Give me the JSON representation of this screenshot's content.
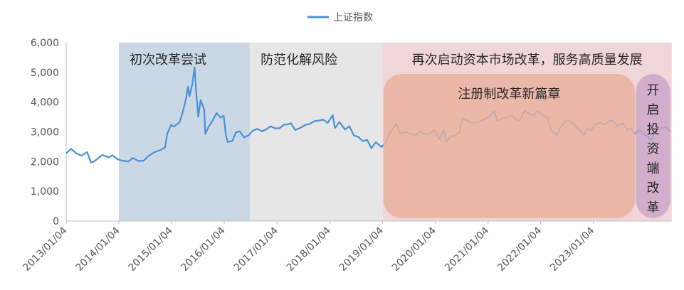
{
  "chart_data": {
    "type": "line",
    "title": "",
    "xlabel": "",
    "ylabel": "",
    "legend": {
      "position": "top-center",
      "entries": [
        "上证指数"
      ]
    },
    "grid": false,
    "ylim": [
      0,
      6000
    ],
    "y_ticks": [
      "0",
      "1,000",
      "2,000",
      "3,000",
      "4,000",
      "5,000",
      "6,000"
    ],
    "x_ticks": [
      "2013/01/04",
      "2014/01/04",
      "2015/01/04",
      "2016/01/04",
      "2017/01/04",
      "2018/01/04",
      "2019/01/04",
      "2020/01/04",
      "2021/01/04",
      "2022/01/04",
      "2023/01/04"
    ],
    "series": [
      {
        "name": "上证指数",
        "color": "#4a90d9",
        "points": [
          [
            "2013-01-04",
            2270
          ],
          [
            "2013-02-06",
            2430
          ],
          [
            "2013-03-15",
            2280
          ],
          [
            "2013-04-20",
            2200
          ],
          [
            "2013-05-29",
            2320
          ],
          [
            "2013-06-25",
            1960
          ],
          [
            "2013-07-20",
            2020
          ],
          [
            "2013-09-12",
            2230
          ],
          [
            "2013-10-25",
            2140
          ],
          [
            "2013-11-20",
            2210
          ],
          [
            "2013-12-25",
            2080
          ],
          [
            "2014-01-20",
            2040
          ],
          [
            "2014-03-10",
            2000
          ],
          [
            "2014-04-10",
            2120
          ],
          [
            "2014-05-20",
            2020
          ],
          [
            "2014-06-25",
            2030
          ],
          [
            "2014-07-25",
            2180
          ],
          [
            "2014-09-10",
            2320
          ],
          [
            "2014-10-15",
            2380
          ],
          [
            "2014-11-20",
            2480
          ],
          [
            "2014-12-05",
            2930
          ],
          [
            "2014-12-31",
            3230
          ],
          [
            "2015-01-20",
            3180
          ],
          [
            "2015-02-27",
            3310
          ],
          [
            "2015-03-20",
            3620
          ],
          [
            "2015-04-15",
            4130
          ],
          [
            "2015-04-28",
            4520
          ],
          [
            "2015-05-08",
            4200
          ],
          [
            "2015-05-28",
            4620
          ],
          [
            "2015-06-12",
            5170
          ],
          [
            "2015-06-26",
            4190
          ],
          [
            "2015-07-08",
            3510
          ],
          [
            "2015-07-24",
            4070
          ],
          [
            "2015-08-18",
            3750
          ],
          [
            "2015-08-26",
            2930
          ],
          [
            "2015-09-15",
            3150
          ],
          [
            "2015-10-20",
            3420
          ],
          [
            "2015-11-12",
            3630
          ],
          [
            "2015-12-10",
            3480
          ],
          [
            "2015-12-31",
            3540
          ],
          [
            "2016-01-15",
            2900
          ],
          [
            "2016-01-28",
            2660
          ],
          [
            "2016-02-29",
            2690
          ],
          [
            "2016-03-25",
            2980
          ],
          [
            "2016-04-20",
            3020
          ],
          [
            "2016-05-20",
            2810
          ],
          [
            "2016-06-20",
            2880
          ],
          [
            "2016-07-20",
            3040
          ],
          [
            "2016-08-20",
            3100
          ],
          [
            "2016-09-20",
            3020
          ],
          [
            "2016-10-20",
            3080
          ],
          [
            "2016-11-20",
            3190
          ],
          [
            "2016-12-20",
            3120
          ],
          [
            "2017-01-20",
            3120
          ],
          [
            "2017-02-20",
            3240
          ],
          [
            "2017-03-20",
            3250
          ],
          [
            "2017-04-10",
            3290
          ],
          [
            "2017-05-10",
            3060
          ],
          [
            "2017-06-20",
            3150
          ],
          [
            "2017-07-20",
            3240
          ],
          [
            "2017-08-20",
            3270
          ],
          [
            "2017-09-20",
            3360
          ],
          [
            "2017-10-20",
            3380
          ],
          [
            "2017-11-20",
            3410
          ],
          [
            "2017-12-20",
            3300
          ],
          [
            "2018-01-24",
            3560
          ],
          [
            "2018-02-09",
            3130
          ],
          [
            "2018-03-12",
            3330
          ],
          [
            "2018-04-20",
            3080
          ],
          [
            "2018-05-20",
            3190
          ],
          [
            "2018-06-20",
            2880
          ],
          [
            "2018-07-20",
            2830
          ],
          [
            "2018-08-20",
            2690
          ],
          [
            "2018-09-20",
            2730
          ],
          [
            "2018-10-19",
            2450
          ],
          [
            "2018-11-20",
            2650
          ],
          [
            "2018-12-28",
            2490
          ],
          [
            "2019-01-20",
            2600
          ],
          [
            "2019-02-25",
            2960
          ],
          [
            "2019-04-08",
            3280
          ],
          [
            "2019-05-10",
            2940
          ],
          [
            "2019-06-20",
            2990
          ],
          [
            "2019-07-20",
            2920
          ],
          [
            "2019-08-20",
            2880
          ],
          [
            "2019-09-20",
            3010
          ],
          [
            "2019-10-20",
            2940
          ],
          [
            "2019-11-20",
            2910
          ],
          [
            "2019-12-31",
            3050
          ],
          [
            "2020-02-03",
            2750
          ],
          [
            "2020-03-05",
            3070
          ],
          [
            "2020-03-23",
            2660
          ],
          [
            "2020-04-20",
            2850
          ],
          [
            "2020-05-20",
            2880
          ],
          [
            "2020-06-20",
            2970
          ],
          [
            "2020-07-09",
            3450
          ],
          [
            "2020-08-20",
            3360
          ],
          [
            "2020-09-20",
            3310
          ],
          [
            "2020-10-20",
            3310
          ],
          [
            "2020-11-20",
            3380
          ],
          [
            "2020-12-31",
            3470
          ],
          [
            "2021-02-18",
            3690
          ],
          [
            "2021-03-10",
            3360
          ],
          [
            "2021-04-20",
            3470
          ],
          [
            "2021-05-20",
            3500
          ],
          [
            "2021-06-20",
            3560
          ],
          [
            "2021-07-28",
            3360
          ],
          [
            "2021-08-20",
            3430
          ],
          [
            "2021-09-14",
            3720
          ],
          [
            "2021-10-20",
            3590
          ],
          [
            "2021-11-20",
            3560
          ],
          [
            "2021-12-13",
            3700
          ],
          [
            "2022-01-20",
            3550
          ],
          [
            "2022-02-20",
            3490
          ],
          [
            "2022-03-15",
            3060
          ],
          [
            "2022-04-27",
            2890
          ],
          [
            "2022-05-20",
            3140
          ],
          [
            "2022-07-05",
            3400
          ],
          [
            "2022-08-20",
            3280
          ],
          [
            "2022-09-20",
            3110
          ],
          [
            "2022-10-31",
            2890
          ],
          [
            "2022-11-20",
            3100
          ],
          [
            "2022-12-20",
            3060
          ],
          [
            "2023-01-20",
            3260
          ],
          [
            "2023-02-20",
            3300
          ],
          [
            "2023-03-20",
            3250
          ],
          [
            "2023-05-09",
            3400
          ],
          [
            "2023-06-20",
            3210
          ],
          [
            "2023-07-31",
            3290
          ],
          [
            "2023-08-25",
            3060
          ],
          [
            "2023-09-20",
            3120
          ],
          [
            "2023-10-23",
            2940
          ],
          [
            "2023-11-20",
            3070
          ],
          [
            "2023-12-20",
            2920
          ],
          [
            "2024-01-20",
            2830
          ],
          [
            "2024-02-05",
            2700
          ],
          [
            "2024-03-20",
            3070
          ],
          [
            "2024-05-20",
            3170
          ],
          [
            "2024-06-20",
            3010
          ]
        ]
      }
    ],
    "annotations": [
      {
        "label": "初次改革尝试",
        "start": "2014-01-04",
        "end": "2016-06-30",
        "color": "#cad8e5",
        "shape": "band"
      },
      {
        "label": "防范化解风险",
        "start": "2016-06-30",
        "end": "2019-01-04",
        "color": "#e6e6e6",
        "shape": "band"
      },
      {
        "label": "再次启动资本市场改革，服务高质量发展",
        "start": "2019-01-04",
        "end": "2024-06-30",
        "color": "#f0d6d8",
        "shape": "band"
      },
      {
        "label": "注册制改革新篇章",
        "start": "2019-01-10",
        "end": "2023-10-20",
        "color": "#e9b19c",
        "shape": "rounded-box"
      },
      {
        "label": "开启投资端改革",
        "start": "2023-10-25",
        "end": "2024-06-20",
        "color": "#caa5c9",
        "shape": "rounded-box"
      }
    ]
  }
}
